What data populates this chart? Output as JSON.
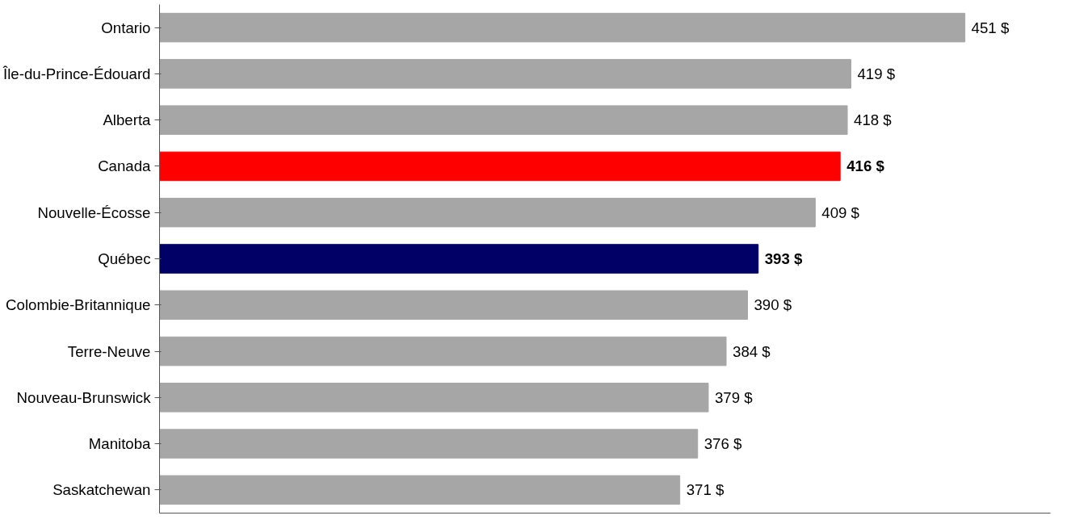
{
  "chart_data": {
    "type": "bar",
    "orientation": "horizontal",
    "categories": [
      "Ontario",
      "Île-du-Prince-Édouard",
      "Alberta",
      "Canada",
      "Nouvelle-Écosse",
      "Québec",
      "Colombie-Britannique",
      "Terre-Neuve",
      "Nouveau-Brunswick",
      "Manitoba",
      "Saskatchewan"
    ],
    "values": [
      451,
      419,
      418,
      416,
      409,
      393,
      390,
      384,
      379,
      376,
      371
    ],
    "value_labels": [
      "451 $",
      "419 $",
      "418 $",
      "416 $",
      "409 $",
      "393 $",
      "390 $",
      "384 $",
      "379 $",
      "376 $",
      "371 $"
    ],
    "colors": [
      "#a6a6a6",
      "#a6a6a6",
      "#a6a6a6",
      "#ff0000",
      "#a6a6a6",
      "#000066",
      "#a6a6a6",
      "#a6a6a6",
      "#a6a6a6",
      "#a6a6a6",
      "#a6a6a6"
    ],
    "xlim": [
      225,
      475
    ],
    "tick_labels": "y",
    "grid": false
  }
}
